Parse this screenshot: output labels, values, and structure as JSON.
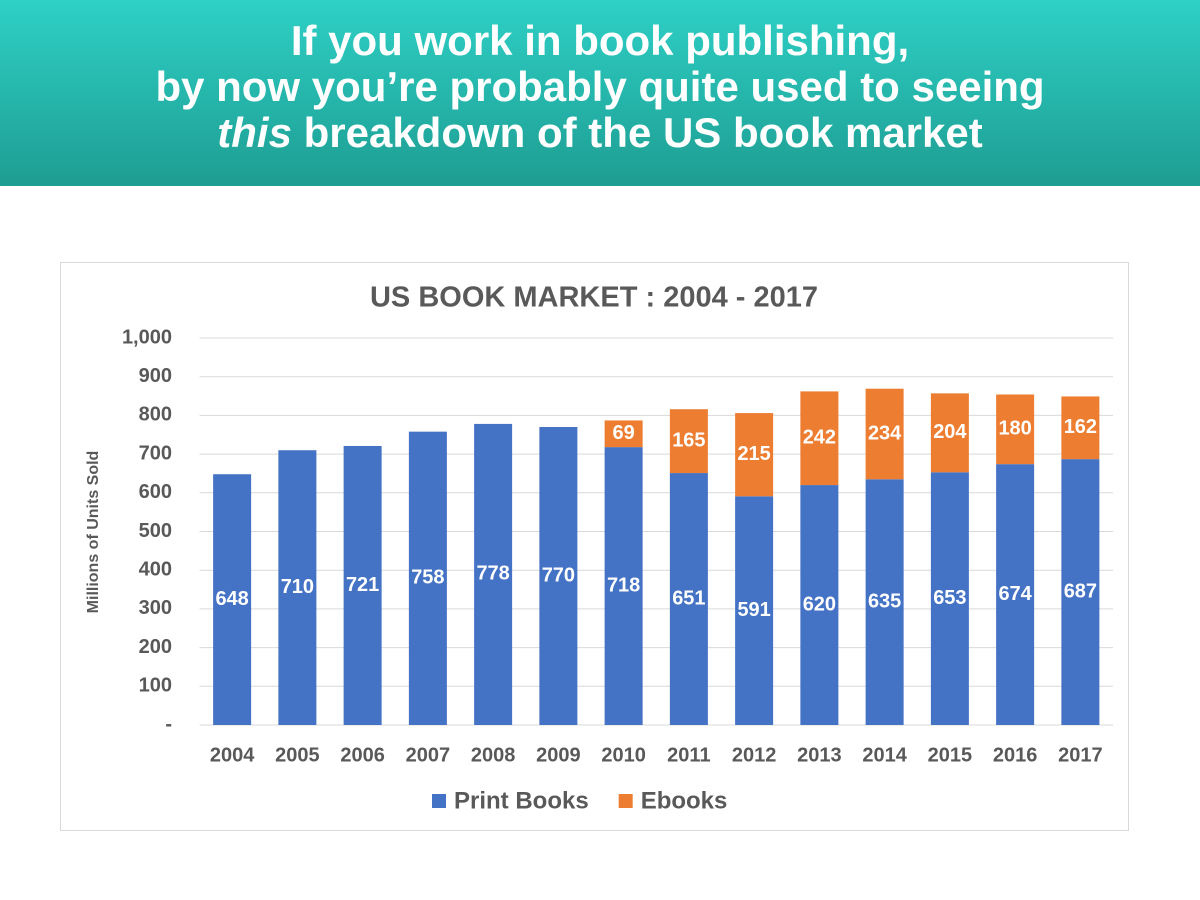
{
  "header": {
    "line1": "If you work in book publishing,",
    "line2": "by now you’re probably quite used to seeing",
    "line3_emphasis": "this",
    "line3": "breakdown of the US book market"
  },
  "chart_data": {
    "type": "stacked_bar",
    "title": "US BOOK MARKET : 2004 - 2017",
    "y_label": "Millions of Units Sold",
    "categories": [
      "2004",
      "2005",
      "2006",
      "2007",
      "2008",
      "2009",
      "2010",
      "2011",
      "2012",
      "2013",
      "2014",
      "2015",
      "2016",
      "2017"
    ],
    "series": [
      {
        "name": "Print Books",
        "color": "#4472c4",
        "values": [
          648,
          710,
          721,
          758,
          778,
          770,
          718,
          651,
          591,
          620,
          635,
          653,
          674,
          687
        ]
      },
      {
        "name": "Ebooks",
        "color": "#ed7d31",
        "values": [
          null,
          null,
          null,
          null,
          null,
          null,
          69,
          165,
          215,
          242,
          234,
          204,
          180,
          162
        ]
      }
    ],
    "ylim": [
      0,
      1000
    ],
    "yticks": [
      {
        "value": 0,
        "label": "-"
      },
      100,
      200,
      300,
      400,
      500,
      600,
      700,
      800,
      900,
      {
        "value": 1000,
        "label": "1,000"
      }
    ],
    "grid": true,
    "legend": "bottom"
  }
}
